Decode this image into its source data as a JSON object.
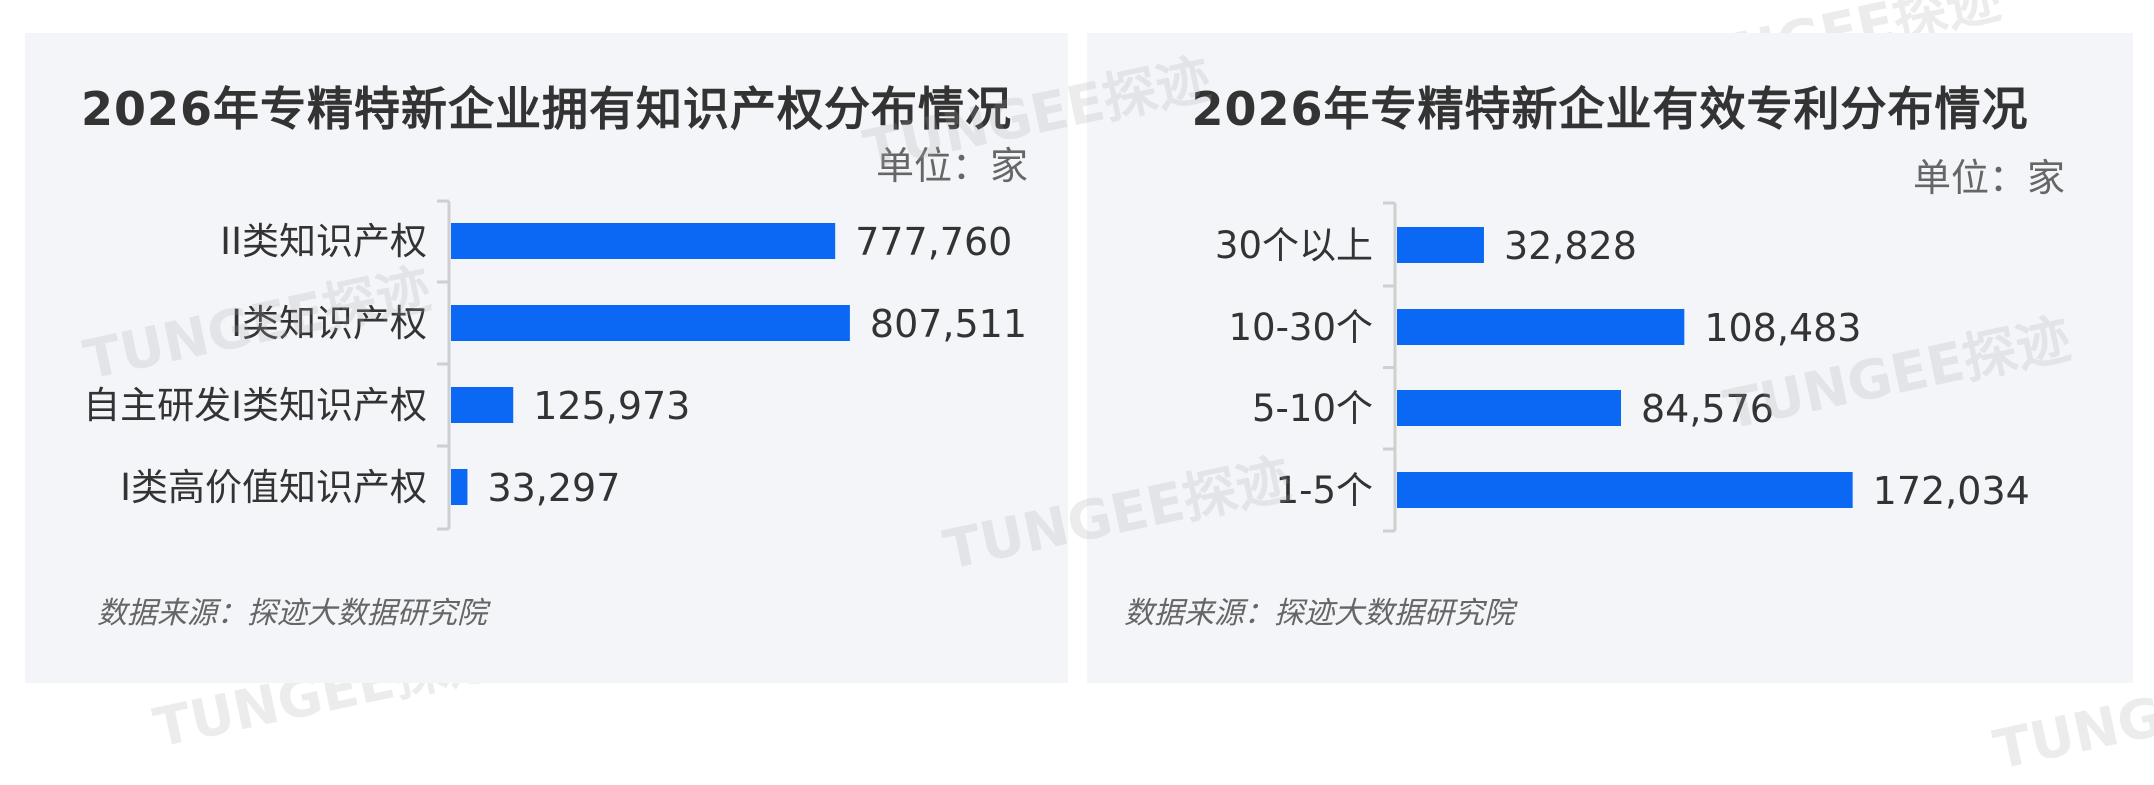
{
  "watermark": "TUNGEE探迹",
  "charts": [
    {
      "title": "2026年专精特新企业拥有知识产权分布情况",
      "unit": "单位：家",
      "source": "数据来源：探迹大数据研究院"
    },
    {
      "title": "2026年专精特新企业有效专利分布情况",
      "unit": "单位：家",
      "source": "数据来源：探迹大数据研究院"
    }
  ],
  "chart_data": [
    {
      "type": "bar",
      "orientation": "horizontal",
      "title": "2026年专精特新企业拥有知识产权分布情况",
      "categories": [
        "II类知识产权",
        "I类知识产权",
        "自主研发I类知识产权",
        "I类高价值知识产权"
      ],
      "values": [
        777760,
        807511,
        125973,
        33297
      ],
      "value_labels": [
        "777,760",
        "807,511",
        "125,973",
        "33,297"
      ],
      "xlim": [
        0,
        830000
      ],
      "color": "#0a68f4",
      "grid": false,
      "legend": "none"
    },
    {
      "type": "bar",
      "orientation": "horizontal",
      "title": "2026年专精特新企业有效专利分布情况",
      "categories": [
        "30个以上",
        "10-30个",
        "5-10个",
        "1-5个"
      ],
      "values": [
        32828,
        108483,
        84576,
        172034
      ],
      "value_labels": [
        "32,828",
        "108,483",
        "84,576",
        "172,034"
      ],
      "xlim": [
        0,
        185000
      ],
      "color": "#0a68f4",
      "grid": false,
      "legend": "none"
    }
  ]
}
